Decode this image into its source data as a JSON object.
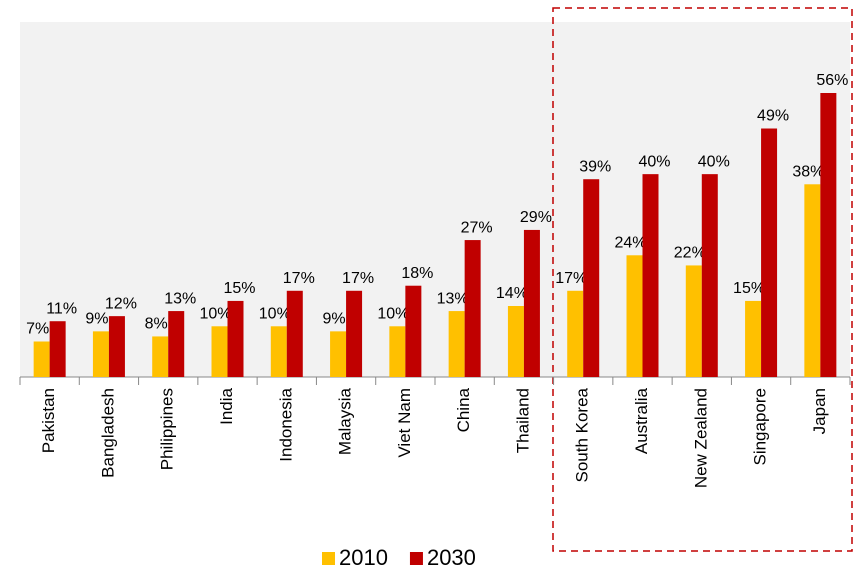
{
  "chart_data": {
    "type": "bar",
    "categories": [
      "Pakistan",
      "Bangladesh",
      "Philippines",
      "India",
      "Indonesia",
      "Malaysia",
      "Viet Nam",
      "China",
      "Thailand",
      "South Korea",
      "Australia",
      "New Zealand",
      "Singapore",
      "Japan"
    ],
    "series": [
      {
        "name": "2010",
        "color": "#ffc000",
        "values": [
          7,
          9,
          8,
          10,
          10,
          9,
          10,
          13,
          14,
          17,
          24,
          22,
          15,
          38
        ],
        "value_labels": [
          "7%",
          "9%",
          "8%",
          "10%",
          "10%",
          "9%",
          "10%",
          "13%",
          "14%",
          "17%",
          "24%",
          "22%",
          "15%",
          "38%"
        ]
      },
      {
        "name": "2030",
        "color": "#c00000",
        "values": [
          11,
          12,
          13,
          15,
          17,
          17,
          18,
          27,
          29,
          39,
          40,
          40,
          49,
          56
        ],
        "value_labels": [
          "11%",
          "12%",
          "13%",
          "15%",
          "17%",
          "17%",
          "18%",
          "27%",
          "29%",
          "39%",
          "40%",
          "40%",
          "49%",
          "56%"
        ]
      }
    ],
    "ylim": [
      0,
      70
    ],
    "legend": "bottom"
  }
}
